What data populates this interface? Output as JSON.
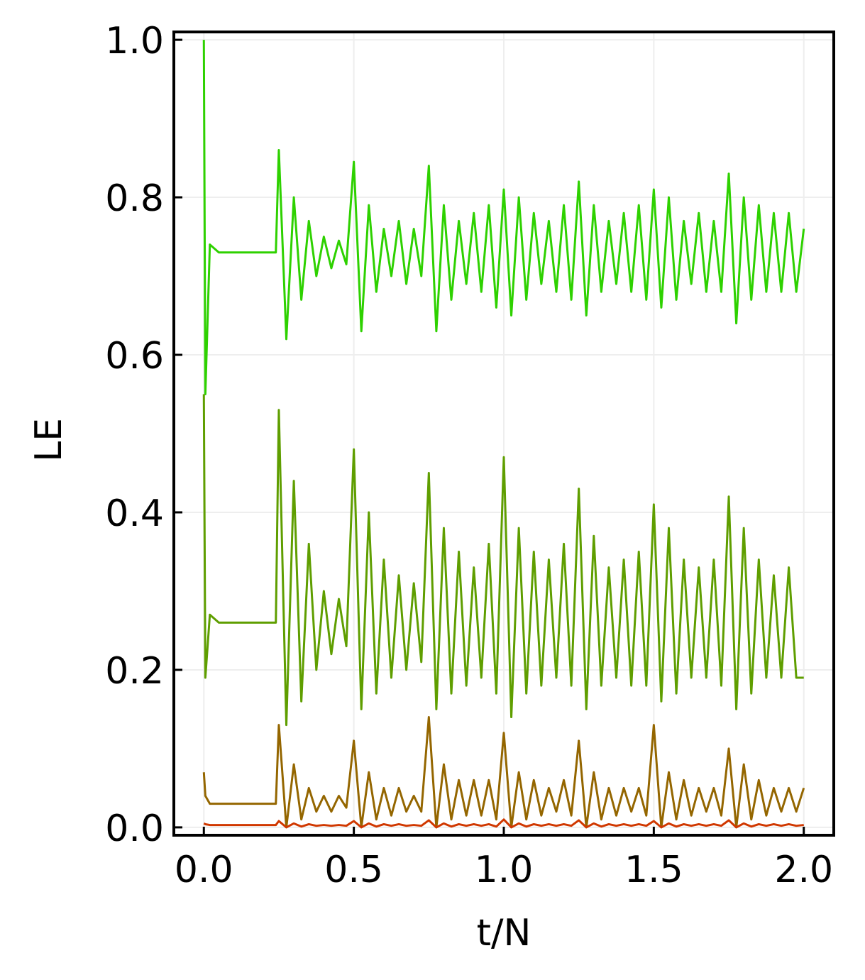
{
  "chart_data": {
    "type": "line",
    "xlabel": "t/N",
    "ylabel": "LE",
    "xlim": [
      -0.1,
      2.1
    ],
    "ylim": [
      -0.01,
      1.01
    ],
    "xticks": [
      {
        "value": 0,
        "label": "0.0"
      },
      0.5,
      {
        "value": 1,
        "label": "1.0"
      },
      1.5,
      {
        "value": 2,
        "label": "2.0"
      }
    ],
    "yticks": [
      {
        "value": 0,
        "label": "0.0"
      },
      0.2,
      0.4,
      0.6,
      0.8,
      {
        "value": 1,
        "label": "1.0"
      }
    ],
    "grid": true,
    "x": [
      0,
      0.005,
      0.02,
      0.05,
      0.1,
      0.2,
      0.24,
      0.25,
      0.275,
      0.3,
      0.325,
      0.35,
      0.375,
      0.4,
      0.425,
      0.45,
      0.475,
      0.5,
      0.525,
      0.55,
      0.575,
      0.6,
      0.625,
      0.65,
      0.675,
      0.7,
      0.725,
      0.75,
      0.775,
      0.8,
      0.825,
      0.85,
      0.875,
      0.9,
      0.925,
      0.95,
      0.975,
      1.0,
      1.025,
      1.05,
      1.075,
      1.1,
      1.125,
      1.15,
      1.175,
      1.2,
      1.225,
      1.25,
      1.275,
      1.3,
      1.325,
      1.35,
      1.375,
      1.4,
      1.425,
      1.45,
      1.475,
      1.5,
      1.525,
      1.55,
      1.575,
      1.6,
      1.625,
      1.65,
      1.675,
      1.7,
      1.725,
      1.75,
      1.775,
      1.8,
      1.825,
      1.85,
      1.875,
      1.9,
      1.925,
      1.95,
      1.975,
      2.0
    ],
    "series": [
      {
        "color": "#2ed100",
        "values": [
          1.0,
          0.55,
          0.74,
          0.73,
          0.73,
          0.73,
          0.73,
          0.86,
          0.62,
          0.8,
          0.67,
          0.77,
          0.7,
          0.75,
          0.71,
          0.745,
          0.715,
          0.845,
          0.63,
          0.79,
          0.68,
          0.76,
          0.7,
          0.77,
          0.69,
          0.76,
          0.7,
          0.84,
          0.63,
          0.79,
          0.67,
          0.77,
          0.69,
          0.78,
          0.68,
          0.79,
          0.66,
          0.81,
          0.65,
          0.8,
          0.67,
          0.78,
          0.69,
          0.77,
          0.68,
          0.79,
          0.67,
          0.82,
          0.65,
          0.79,
          0.68,
          0.77,
          0.69,
          0.78,
          0.68,
          0.79,
          0.67,
          0.81,
          0.66,
          0.8,
          0.67,
          0.77,
          0.69,
          0.78,
          0.68,
          0.77,
          0.68,
          0.83,
          0.64,
          0.8,
          0.67,
          0.79,
          0.68,
          0.78,
          0.68,
          0.78,
          0.68,
          0.76
        ]
      },
      {
        "color": "#5f9e00",
        "values": [
          0.55,
          0.19,
          0.27,
          0.26,
          0.26,
          0.26,
          0.26,
          0.53,
          0.13,
          0.44,
          0.16,
          0.36,
          0.2,
          0.3,
          0.22,
          0.29,
          0.23,
          0.48,
          0.15,
          0.4,
          0.17,
          0.34,
          0.19,
          0.32,
          0.2,
          0.31,
          0.21,
          0.45,
          0.15,
          0.38,
          0.17,
          0.35,
          0.18,
          0.33,
          0.19,
          0.36,
          0.17,
          0.47,
          0.14,
          0.38,
          0.17,
          0.35,
          0.18,
          0.34,
          0.19,
          0.36,
          0.18,
          0.43,
          0.15,
          0.37,
          0.18,
          0.33,
          0.19,
          0.34,
          0.18,
          0.35,
          0.18,
          0.41,
          0.16,
          0.38,
          0.17,
          0.34,
          0.19,
          0.33,
          0.19,
          0.34,
          0.18,
          0.42,
          0.15,
          0.38,
          0.17,
          0.34,
          0.19,
          0.32,
          0.19,
          0.33,
          0.19,
          0.19
        ]
      },
      {
        "color": "#946600",
        "values": [
          0.07,
          0.04,
          0.03,
          0.03,
          0.03,
          0.03,
          0.03,
          0.13,
          0.0,
          0.08,
          0.01,
          0.05,
          0.02,
          0.04,
          0.02,
          0.04,
          0.025,
          0.11,
          0.0,
          0.07,
          0.01,
          0.05,
          0.015,
          0.05,
          0.02,
          0.04,
          0.02,
          0.14,
          0.0,
          0.08,
          0.01,
          0.06,
          0.015,
          0.06,
          0.015,
          0.06,
          0.01,
          0.12,
          0.0,
          0.07,
          0.01,
          0.06,
          0.015,
          0.05,
          0.02,
          0.06,
          0.015,
          0.11,
          0.0,
          0.07,
          0.01,
          0.05,
          0.015,
          0.05,
          0.02,
          0.05,
          0.015,
          0.13,
          0.0,
          0.07,
          0.01,
          0.06,
          0.015,
          0.05,
          0.02,
          0.05,
          0.015,
          0.1,
          0.0,
          0.08,
          0.01,
          0.06,
          0.015,
          0.05,
          0.02,
          0.05,
          0.02,
          0.05
        ]
      },
      {
        "color": "#d03800",
        "values": [
          0.005,
          0.004,
          0.003,
          0.003,
          0.003,
          0.003,
          0.003,
          0.008,
          0.0,
          0.005,
          0.001,
          0.004,
          0.002,
          0.003,
          0.002,
          0.003,
          0.002,
          0.008,
          0.0,
          0.005,
          0.001,
          0.004,
          0.002,
          0.004,
          0.002,
          0.003,
          0.002,
          0.009,
          0.0,
          0.005,
          0.001,
          0.004,
          0.002,
          0.004,
          0.002,
          0.004,
          0.001,
          0.01,
          0.0,
          0.005,
          0.001,
          0.004,
          0.002,
          0.004,
          0.002,
          0.004,
          0.002,
          0.009,
          0.0,
          0.005,
          0.001,
          0.004,
          0.002,
          0.004,
          0.002,
          0.004,
          0.002,
          0.008,
          0.0,
          0.005,
          0.001,
          0.004,
          0.002,
          0.004,
          0.002,
          0.004,
          0.002,
          0.009,
          0.0,
          0.005,
          0.001,
          0.004,
          0.002,
          0.004,
          0.002,
          0.004,
          0.002,
          0.003
        ]
      }
    ]
  }
}
